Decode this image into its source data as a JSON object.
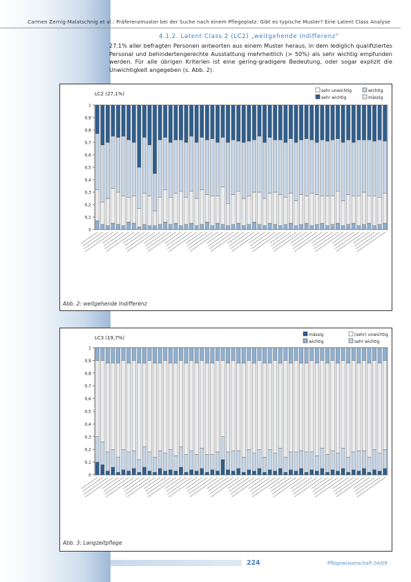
{
  "header": {
    "running_title": "Carmen Zernig-Malatschnig et al.: Präferenzmuster bei der Suche nach einem Pflegeplatz: Gibt es typische Muster? Eine Latent Class Analyse"
  },
  "section": {
    "heading": "4.1.2. Latent Class 2 (LC2) „weitgehende Indifferenz“",
    "paragraph": "27,1% aller befragten Personen antworten aus einem Muster heraus, in dem lediglich qualifiziertes Personal und behindertengerechte Ausstattung mehrheitlich (> 50%) als sehr wichtig empfunden werden. Für alle übrigen Kriterien ist eine gering-gradigere Bedeutung, oder sogar explizit die Unwichtigkeit angegeben (s. Abb. 2)."
  },
  "figures": {
    "fig2": {
      "caption": "Abb. 2: weitgehende Indifferenz",
      "label": "LC2 (27,1%)",
      "legend": [
        "sehr unwichtig",
        "wichtig",
        "sehr wichtig",
        "mässig"
      ],
      "yticks": [
        "0",
        "0,1",
        "0,2",
        "0,3",
        "0,4",
        "0,5",
        "0,6",
        "0,7",
        "0,8",
        "0,9",
        "1"
      ]
    },
    "fig3": {
      "caption": "Abb. 3: Langzeitpflege",
      "label": "LC3 (19,7%)",
      "legend": [
        "mässig",
        "(sehr) unwichtig",
        "wichtig",
        "sehr wichtig"
      ],
      "yticks": [
        "0",
        "0,1",
        "0,2",
        "0,3",
        "0,4",
        "0,5",
        "0,6",
        "0,7",
        "0,8",
        "0,9",
        "1"
      ]
    }
  },
  "colors": {
    "sehr_wichtig": "#2f5e8c",
    "wichtig": "#c6d6e6",
    "maessig": "#ececec",
    "sehr_unwichtig": "#8fb0d0",
    "accent": "#3d7fbe"
  },
  "chart_data": [
    {
      "type": "bar",
      "stacked": true,
      "title": "LC2 (27,1%)",
      "ylim": [
        0,
        1
      ],
      "series_names": [
        "sehr unwichtig",
        "mässig",
        "wichtig",
        "sehr wichtig"
      ],
      "values": [
        [
          0.07,
          0.25,
          0.45,
          0.23
        ],
        [
          0.04,
          0.18,
          0.46,
          0.32
        ],
        [
          0.03,
          0.22,
          0.45,
          0.3
        ],
        [
          0.05,
          0.28,
          0.42,
          0.25
        ],
        [
          0.04,
          0.26,
          0.44,
          0.26
        ],
        [
          0.03,
          0.24,
          0.48,
          0.25
        ],
        [
          0.06,
          0.2,
          0.46,
          0.28
        ],
        [
          0.05,
          0.22,
          0.43,
          0.3
        ],
        [
          0.02,
          0.15,
          0.33,
          0.5
        ],
        [
          0.04,
          0.25,
          0.45,
          0.26
        ],
        [
          0.03,
          0.24,
          0.41,
          0.32
        ],
        [
          0.03,
          0.12,
          0.3,
          0.55
        ],
        [
          0.04,
          0.22,
          0.46,
          0.28
        ],
        [
          0.06,
          0.26,
          0.42,
          0.26
        ],
        [
          0.04,
          0.22,
          0.44,
          0.3
        ],
        [
          0.05,
          0.24,
          0.43,
          0.28
        ],
        [
          0.03,
          0.28,
          0.41,
          0.28
        ],
        [
          0.04,
          0.22,
          0.44,
          0.3
        ],
        [
          0.05,
          0.26,
          0.44,
          0.25
        ],
        [
          0.03,
          0.22,
          0.45,
          0.3
        ],
        [
          0.04,
          0.28,
          0.42,
          0.26
        ],
        [
          0.06,
          0.22,
          0.44,
          0.28
        ],
        [
          0.03,
          0.24,
          0.46,
          0.27
        ],
        [
          0.05,
          0.22,
          0.43,
          0.3
        ],
        [
          0.04,
          0.3,
          0.4,
          0.26
        ],
        [
          0.03,
          0.18,
          0.49,
          0.3
        ],
        [
          0.04,
          0.24,
          0.44,
          0.28
        ],
        [
          0.05,
          0.26,
          0.4,
          0.29
        ],
        [
          0.03,
          0.22,
          0.45,
          0.3
        ],
        [
          0.04,
          0.23,
          0.44,
          0.29
        ],
        [
          0.06,
          0.24,
          0.42,
          0.28
        ],
        [
          0.04,
          0.26,
          0.45,
          0.25
        ],
        [
          0.03,
          0.22,
          0.45,
          0.3
        ],
        [
          0.05,
          0.24,
          0.45,
          0.26
        ],
        [
          0.04,
          0.26,
          0.42,
          0.28
        ],
        [
          0.03,
          0.25,
          0.44,
          0.28
        ],
        [
          0.04,
          0.22,
          0.44,
          0.3
        ],
        [
          0.05,
          0.24,
          0.44,
          0.27
        ],
        [
          0.03,
          0.2,
          0.47,
          0.3
        ],
        [
          0.04,
          0.24,
          0.44,
          0.28
        ],
        [
          0.05,
          0.22,
          0.46,
          0.27
        ],
        [
          0.03,
          0.26,
          0.43,
          0.28
        ],
        [
          0.04,
          0.24,
          0.42,
          0.3
        ],
        [
          0.05,
          0.22,
          0.45,
          0.28
        ],
        [
          0.03,
          0.24,
          0.44,
          0.29
        ],
        [
          0.04,
          0.23,
          0.45,
          0.28
        ],
        [
          0.05,
          0.26,
          0.42,
          0.27
        ],
        [
          0.03,
          0.2,
          0.47,
          0.3
        ],
        [
          0.04,
          0.24,
          0.44,
          0.28
        ],
        [
          0.05,
          0.22,
          0.43,
          0.3
        ],
        [
          0.03,
          0.24,
          0.45,
          0.28
        ],
        [
          0.04,
          0.26,
          0.42,
          0.28
        ],
        [
          0.05,
          0.22,
          0.45,
          0.28
        ],
        [
          0.03,
          0.24,
          0.44,
          0.29
        ],
        [
          0.04,
          0.22,
          0.46,
          0.28
        ],
        [
          0.05,
          0.24,
          0.42,
          0.29
        ]
      ]
    },
    {
      "type": "bar",
      "stacked": true,
      "title": "LC3 (19,7%)",
      "ylim": [
        0,
        1
      ],
      "series_names": [
        "sehr wichtig",
        "wichtig",
        "mässig",
        "(sehr) unwichtig"
      ],
      "values": [
        [
          0.1,
          0.2,
          0.6,
          0.1
        ],
        [
          0.08,
          0.18,
          0.64,
          0.1
        ],
        [
          0.03,
          0.15,
          0.7,
          0.12
        ],
        [
          0.06,
          0.14,
          0.68,
          0.12
        ],
        [
          0.02,
          0.12,
          0.74,
          0.12
        ],
        [
          0.04,
          0.16,
          0.7,
          0.1
        ],
        [
          0.03,
          0.15,
          0.7,
          0.12
        ],
        [
          0.05,
          0.14,
          0.71,
          0.1
        ],
        [
          0.02,
          0.1,
          0.76,
          0.12
        ],
        [
          0.06,
          0.16,
          0.66,
          0.12
        ],
        [
          0.03,
          0.15,
          0.72,
          0.1
        ],
        [
          0.02,
          0.12,
          0.74,
          0.12
        ],
        [
          0.05,
          0.14,
          0.69,
          0.12
        ],
        [
          0.03,
          0.14,
          0.73,
          0.1
        ],
        [
          0.04,
          0.16,
          0.68,
          0.12
        ],
        [
          0.03,
          0.12,
          0.73,
          0.12
        ],
        [
          0.06,
          0.16,
          0.68,
          0.1
        ],
        [
          0.02,
          0.14,
          0.72,
          0.12
        ],
        [
          0.04,
          0.15,
          0.71,
          0.1
        ],
        [
          0.03,
          0.13,
          0.72,
          0.12
        ],
        [
          0.05,
          0.16,
          0.69,
          0.1
        ],
        [
          0.02,
          0.14,
          0.72,
          0.12
        ],
        [
          0.04,
          0.12,
          0.72,
          0.12
        ],
        [
          0.03,
          0.15,
          0.72,
          0.1
        ],
        [
          0.12,
          0.18,
          0.6,
          0.1
        ],
        [
          0.04,
          0.14,
          0.7,
          0.12
        ],
        [
          0.03,
          0.16,
          0.71,
          0.1
        ],
        [
          0.05,
          0.14,
          0.69,
          0.12
        ],
        [
          0.02,
          0.12,
          0.74,
          0.12
        ],
        [
          0.04,
          0.16,
          0.7,
          0.1
        ],
        [
          0.03,
          0.14,
          0.71,
          0.12
        ],
        [
          0.05,
          0.15,
          0.7,
          0.1
        ],
        [
          0.02,
          0.12,
          0.74,
          0.12
        ],
        [
          0.04,
          0.16,
          0.68,
          0.12
        ],
        [
          0.03,
          0.14,
          0.73,
          0.1
        ],
        [
          0.05,
          0.16,
          0.67,
          0.12
        ],
        [
          0.02,
          0.12,
          0.76,
          0.1
        ],
        [
          0.04,
          0.14,
          0.7,
          0.12
        ],
        [
          0.03,
          0.15,
          0.72,
          0.1
        ],
        [
          0.05,
          0.14,
          0.69,
          0.12
        ],
        [
          0.02,
          0.16,
          0.7,
          0.12
        ],
        [
          0.04,
          0.14,
          0.72,
          0.1
        ],
        [
          0.03,
          0.12,
          0.73,
          0.12
        ],
        [
          0.05,
          0.16,
          0.69,
          0.1
        ],
        [
          0.02,
          0.14,
          0.72,
          0.12
        ],
        [
          0.04,
          0.15,
          0.71,
          0.1
        ],
        [
          0.03,
          0.14,
          0.71,
          0.12
        ],
        [
          0.05,
          0.16,
          0.69,
          0.1
        ],
        [
          0.02,
          0.12,
          0.74,
          0.12
        ],
        [
          0.04,
          0.14,
          0.72,
          0.1
        ],
        [
          0.03,
          0.16,
          0.69,
          0.12
        ],
        [
          0.05,
          0.14,
          0.71,
          0.1
        ],
        [
          0.02,
          0.12,
          0.74,
          0.12
        ],
        [
          0.04,
          0.16,
          0.7,
          0.1
        ],
        [
          0.03,
          0.14,
          0.71,
          0.12
        ],
        [
          0.05,
          0.15,
          0.7,
          0.1
        ]
      ]
    }
  ],
  "footer": {
    "page_number": "224",
    "journal": "Pflegewissenschaft 04/09"
  }
}
